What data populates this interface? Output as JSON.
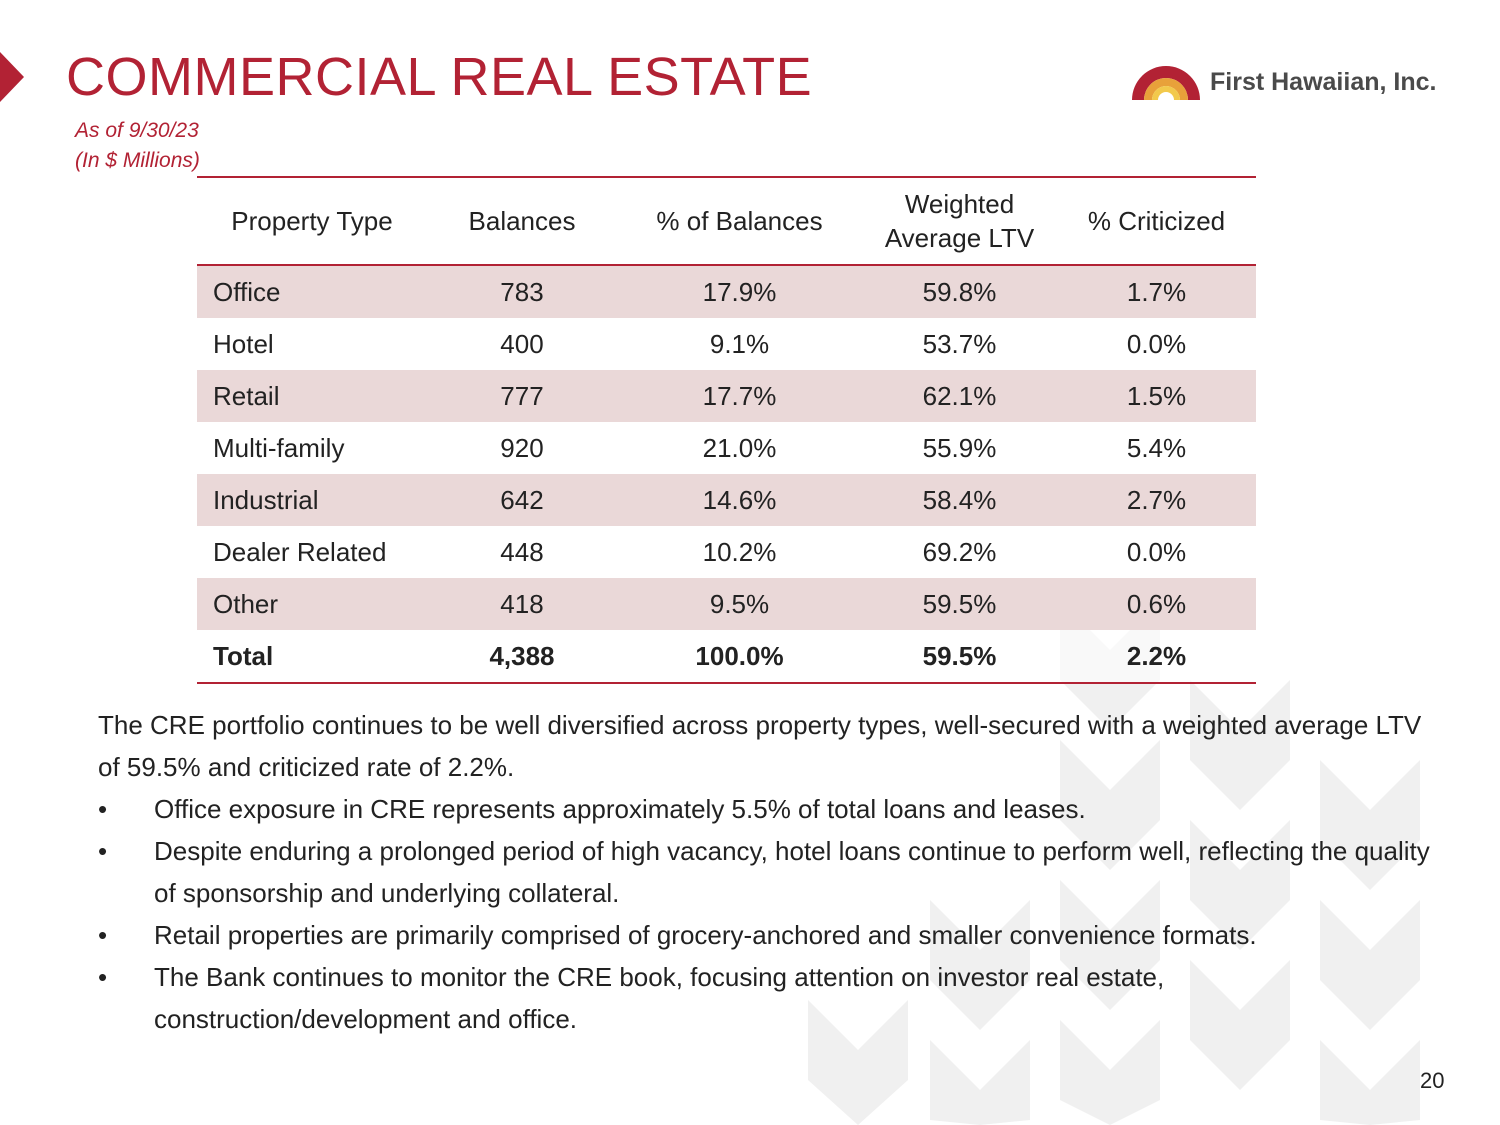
{
  "header": {
    "title": "COMMERCIAL REAL ESTATE",
    "subtitle_line1": "As of 9/30/23",
    "subtitle_line2": "(In $ Millions)",
    "logo_text": "First Hawaiian, Inc."
  },
  "table": {
    "headers": [
      "Property Type",
      "Balances",
      "% of Balances",
      "Weighted Average LTV",
      "% Criticized"
    ],
    "rows": [
      [
        "Office",
        "783",
        "17.9%",
        "59.8%",
        "1.7%"
      ],
      [
        "Hotel",
        "400",
        "9.1%",
        "53.7%",
        "0.0%"
      ],
      [
        "Retail",
        "777",
        "17.7%",
        "62.1%",
        "1.5%"
      ],
      [
        "Multi-family",
        "920",
        "21.0%",
        "55.9%",
        "5.4%"
      ],
      [
        "Industrial",
        "642",
        "14.6%",
        "58.4%",
        "2.7%"
      ],
      [
        "Dealer Related",
        "448",
        "10.2%",
        "69.2%",
        "0.0%"
      ],
      [
        "Other",
        "418",
        "9.5%",
        "59.5%",
        "0.6%"
      ]
    ],
    "total": [
      "Total",
      "4,388",
      "100.0%",
      "59.5%",
      "2.2%"
    ]
  },
  "summary": {
    "intro": "The CRE portfolio continues to be well diversified across property types, well-secured with a weighted average LTV of 59.5% and criticized rate of 2.2%.",
    "bullet_char": "•",
    "bullets": [
      "Office exposure in CRE represents approximately 5.5% of total loans and leases.",
      "Despite enduring a prolonged period of high vacancy, hotel loans continue to perform well, reflecting the quality of sponsorship and underlying collateral.",
      "Retail properties are primarily comprised of grocery-anchored and smaller convenience formats.",
      "The Bank continues to monitor the CRE book, focusing attention on investor real estate, construction/development and office."
    ]
  },
  "footer": {
    "page_number": "20"
  },
  "colors": {
    "accent": "#b22234",
    "row_shade": "#ead8d8",
    "text": "#222222"
  }
}
